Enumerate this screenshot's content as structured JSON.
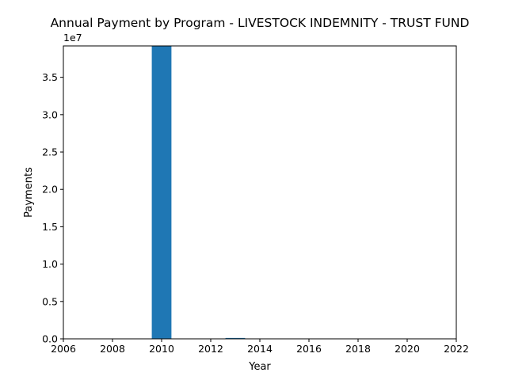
{
  "chart_data": {
    "type": "bar",
    "title": "Annual Payment by Program - LIVESTOCK INDEMNITY - TRUST FUND",
    "xlabel": "Year",
    "ylabel": "Payments",
    "y_offset_text": "1e7",
    "xlim": [
      2006,
      2022
    ],
    "ylim": [
      0,
      39200000
    ],
    "x_ticks": [
      2006,
      2008,
      2010,
      2012,
      2014,
      2016,
      2018,
      2020,
      2022
    ],
    "y_ticks": [
      0.0,
      0.5,
      1.0,
      1.5,
      2.0,
      2.5,
      3.0,
      3.5
    ],
    "y_tick_scale": 10000000,
    "bar_width_years": 0.8,
    "bar_color": "#1f77b4",
    "grid": false,
    "legend": "none",
    "series": [
      {
        "x": [
          2010,
          2013
        ],
        "values": [
          39200000,
          120000
        ]
      }
    ]
  }
}
